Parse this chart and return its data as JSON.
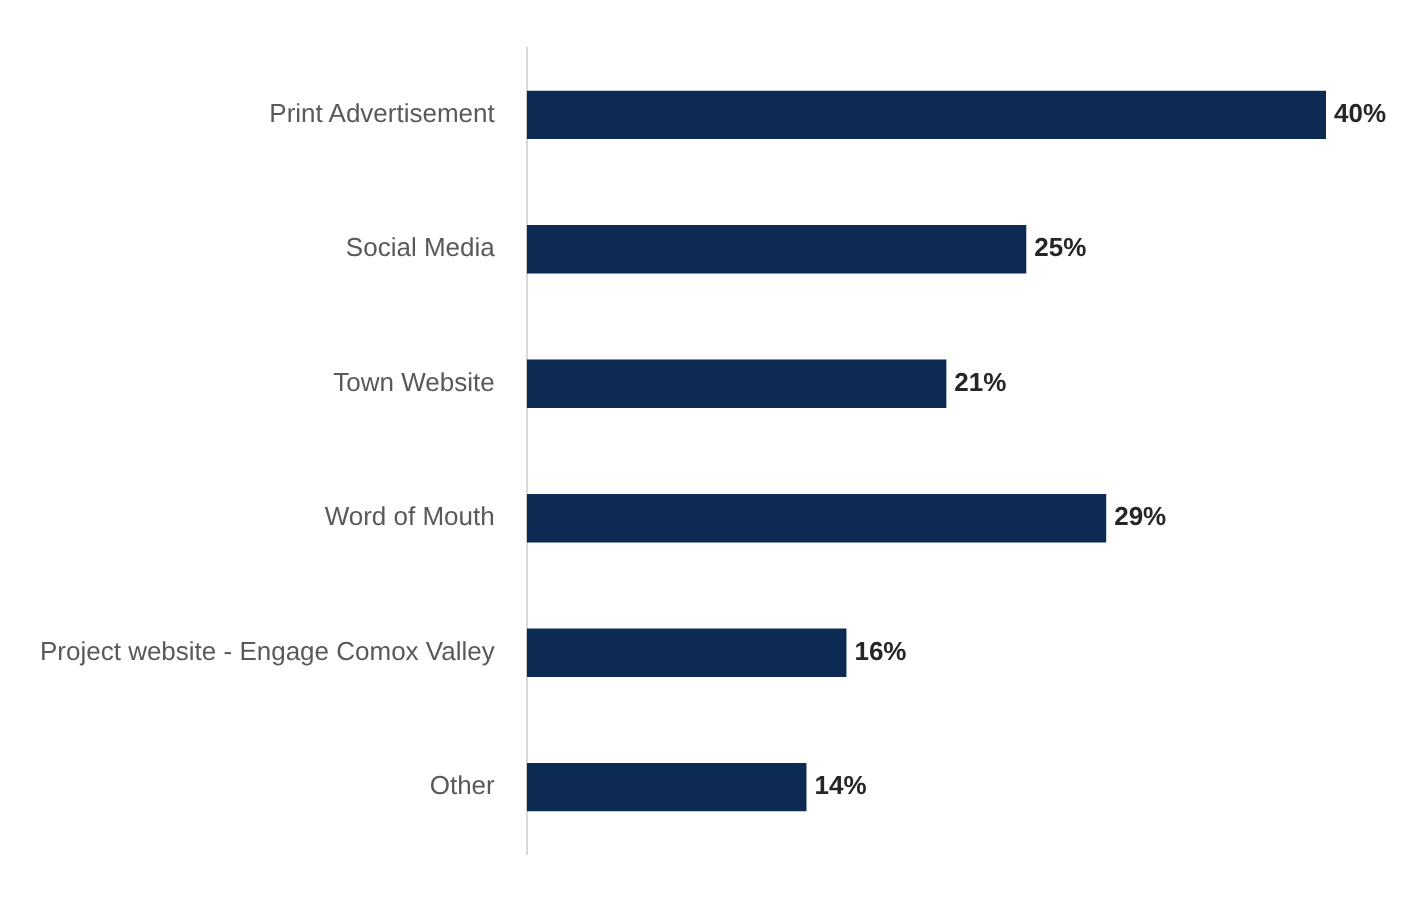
{
  "chart_data": {
    "type": "bar",
    "orientation": "horizontal",
    "categories": [
      "Print Advertisement",
      "Social Media",
      "Town Website",
      "Word of Mouth",
      "Project website - Engage Comox Valley",
      "Other"
    ],
    "values": [
      40,
      25,
      21,
      29,
      16,
      14
    ],
    "value_labels": [
      "40%",
      "25%",
      "21%",
      "29%",
      "16%",
      "14%"
    ],
    "color": "#0c2a52",
    "legend": false
  }
}
